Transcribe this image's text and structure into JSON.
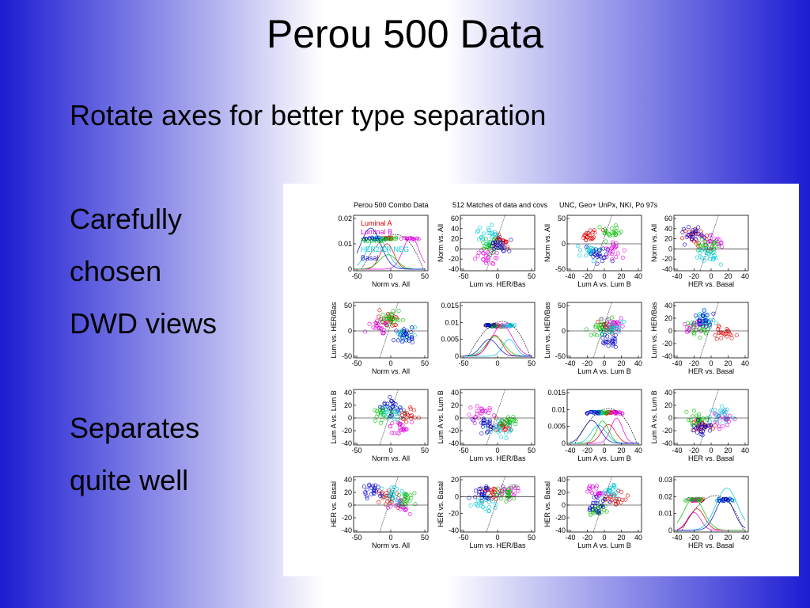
{
  "title": "Perou 500 Data",
  "subtitle": "Rotate axes for better type separation",
  "bullets": [
    "Carefully",
    "chosen",
    "DWD views",
    "Separates",
    "quite well"
  ],
  "figure": {
    "titles": [
      "Perou 500 Combo Data",
      "512 Matches of data and covs",
      "UNC, Geo+ UnPx, NKI, Po 97s"
    ],
    "legend": [
      "Luminal A",
      "Luminal B",
      "Normal",
      "HER2/ER NEG",
      "Basal"
    ],
    "panels": [
      {
        "density": true,
        "xlabel": "Norm vs. All",
        "xticks": [
          -50,
          0,
          50
        ],
        "yticks": [
          0,
          0.01,
          0.02
        ]
      },
      {
        "ylabel": "Norm vs. All",
        "xlabel": "Lum vs. HER/Bas",
        "xticks": [
          -50,
          0,
          50
        ],
        "yticks": [
          -40,
          -20,
          0,
          20,
          40,
          60
        ]
      },
      {
        "ylabel": "Norm vs. All",
        "xlabel": "Lum A vs. Lum B",
        "xticks": [
          -40,
          -20,
          0,
          20,
          40
        ],
        "yticks": [
          -50,
          0,
          50
        ]
      },
      {
        "ylabel": "Norm vs. All",
        "xlabel": "HER vs. Basal",
        "xticks": [
          -40,
          -20,
          0,
          20,
          40
        ],
        "yticks": [
          -40,
          -20,
          0,
          20,
          40,
          60
        ]
      },
      {
        "ylabel": "Lum vs. HER/Bas",
        "xlabel": "Norm vs. All",
        "xticks": [
          -50,
          0,
          50
        ],
        "yticks": [
          -50,
          0,
          50
        ]
      },
      {
        "density": true,
        "xticks": [
          -50,
          0,
          50
        ],
        "yticks": [
          0,
          0.005,
          0.01,
          0.015
        ]
      },
      {
        "ylabel": "Lum vs. HER/Bas",
        "xlabel": "Lum A vs. Lum B",
        "xticks": [
          -40,
          -20,
          0,
          20,
          40
        ],
        "yticks": [
          -50,
          0,
          50
        ]
      },
      {
        "ylabel": "Lum vs. HER/Bas",
        "xlabel": "HER vs. Basal",
        "xticks": [
          -40,
          -20,
          0,
          20,
          40
        ],
        "yticks": [
          -40,
          -20,
          0,
          20,
          40
        ]
      },
      {
        "ylabel": "Lum A vs. Lum B",
        "xlabel": "Norm vs. All",
        "xticks": [
          -50,
          0,
          50
        ],
        "yticks": [
          -40,
          -20,
          0,
          20,
          40
        ]
      },
      {
        "ylabel": "Lum A vs. Lum B",
        "xlabel": "Lum vs. HER/Bas",
        "xticks": [
          -50,
          0,
          50
        ],
        "yticks": [
          -40,
          -20,
          0,
          20,
          40
        ]
      },
      {
        "density": true,
        "xlabel": "Lum A vs. Lum B",
        "xticks": [
          -40,
          -20,
          0,
          20,
          40
        ],
        "yticks": [
          0,
          0.005,
          0.01,
          0.015
        ]
      },
      {
        "ylabel": "Lum A vs. Lum B",
        "xlabel": "HER vs. Basal",
        "xticks": [
          -40,
          -20,
          0,
          20,
          40
        ],
        "yticks": [
          -40,
          -20,
          0,
          20,
          40
        ]
      },
      {
        "ylabel": "HER vs. Basal",
        "xlabel": "Norm vs. All",
        "xticks": [
          -50,
          0,
          50
        ],
        "yticks": [
          -40,
          -20,
          0,
          20,
          40
        ]
      },
      {
        "ylabel": "HER vs. Basal",
        "xlabel": "Lum vs. HER/Bas",
        "xticks": [
          -50,
          0,
          50
        ],
        "yticks": [
          -40,
          -20,
          0,
          20
        ]
      },
      {
        "ylabel": "HER vs. Basal",
        "xlabel": "Lum A vs. Lum B",
        "xticks": [
          -40,
          -20,
          0,
          20,
          40
        ],
        "yticks": [
          -40,
          -20,
          0,
          20,
          40
        ]
      },
      {
        "density": true,
        "xlabel": "HER vs. Basal",
        "xticks": [
          -40,
          -20,
          0,
          20,
          40
        ],
        "yticks": [
          0,
          0.01,
          0.02,
          0.03
        ]
      }
    ]
  }
}
